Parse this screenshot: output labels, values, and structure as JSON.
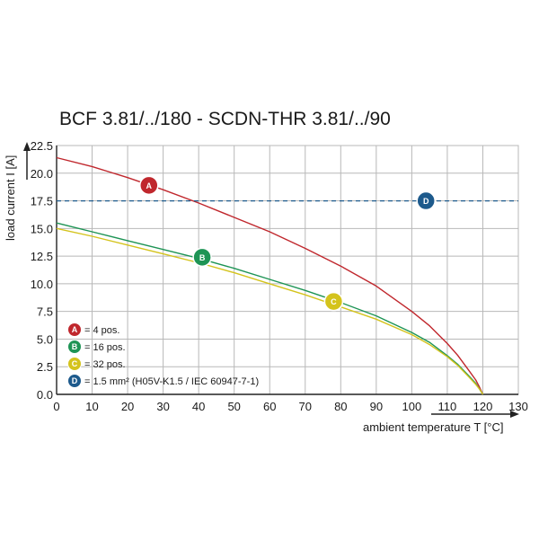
{
  "chart_data": {
    "type": "line",
    "title": "BCF 3.81/../180 - SCDN-THR 3.81/../90",
    "xlabel": "ambient temperature T [°C]",
    "ylabel": "load current I [A]",
    "xlim": [
      0,
      130
    ],
    "ylim": [
      0,
      22.5
    ],
    "x_ticks": [
      "0",
      "10",
      "20",
      "30",
      "40",
      "50",
      "60",
      "70",
      "80",
      "90",
      "100",
      "110",
      "120",
      "130"
    ],
    "y_ticks": [
      "0.0",
      "2.5",
      "5.0",
      "7.5",
      "10.0",
      "12.5",
      "15.0",
      "17.5",
      "20.0",
      "22.5"
    ],
    "grid": true,
    "legend_position": "bottom-left",
    "series": [
      {
        "key": "A",
        "marker": "A",
        "legend": "= 4 pos.",
        "color": "#c0272d",
        "style": "solid",
        "label_at": [
          26,
          18.9
        ],
        "x": [
          0,
          10,
          20,
          30,
          40,
          50,
          60,
          70,
          80,
          90,
          100,
          105,
          110,
          113,
          116,
          118,
          119,
          120
        ],
        "y": [
          21.4,
          20.6,
          19.6,
          18.5,
          17.3,
          16.0,
          14.7,
          13.2,
          11.6,
          9.8,
          7.5,
          6.2,
          4.6,
          3.5,
          2.2,
          1.3,
          0.7,
          0
        ]
      },
      {
        "key": "B",
        "marker": "B",
        "legend": "= 16 pos.",
        "color": "#1e9455",
        "style": "solid",
        "label_at": [
          41,
          12.4
        ],
        "x": [
          0,
          10,
          20,
          30,
          40,
          50,
          60,
          70,
          80,
          90,
          100,
          105,
          110,
          113,
          116,
          118,
          119,
          120
        ],
        "y": [
          15.5,
          14.7,
          13.9,
          13.1,
          12.3,
          11.4,
          10.4,
          9.4,
          8.3,
          7.1,
          5.6,
          4.7,
          3.5,
          2.7,
          1.7,
          1.0,
          0.5,
          0
        ]
      },
      {
        "key": "C",
        "marker": "C",
        "legend": "= 32 pos.",
        "color": "#d4c31c",
        "style": "solid",
        "label_at": [
          78,
          8.4
        ],
        "x": [
          0,
          10,
          20,
          30,
          40,
          50,
          60,
          70,
          80,
          90,
          100,
          105,
          110,
          113,
          116,
          118,
          119,
          120
        ],
        "y": [
          15.0,
          14.3,
          13.5,
          12.7,
          11.9,
          11.0,
          10.0,
          9.0,
          7.9,
          6.8,
          5.4,
          4.5,
          3.4,
          2.6,
          1.6,
          0.9,
          0.5,
          0
        ]
      },
      {
        "key": "D",
        "marker": "D",
        "legend": "= 1.5 mm² (H05V-K1.5 / IEC 60947-7-1)",
        "color": "#1d5a8c",
        "style": "dashed",
        "label_at": [
          104,
          17.5
        ],
        "x": [
          0,
          130
        ],
        "y": [
          17.5,
          17.5
        ]
      }
    ]
  }
}
